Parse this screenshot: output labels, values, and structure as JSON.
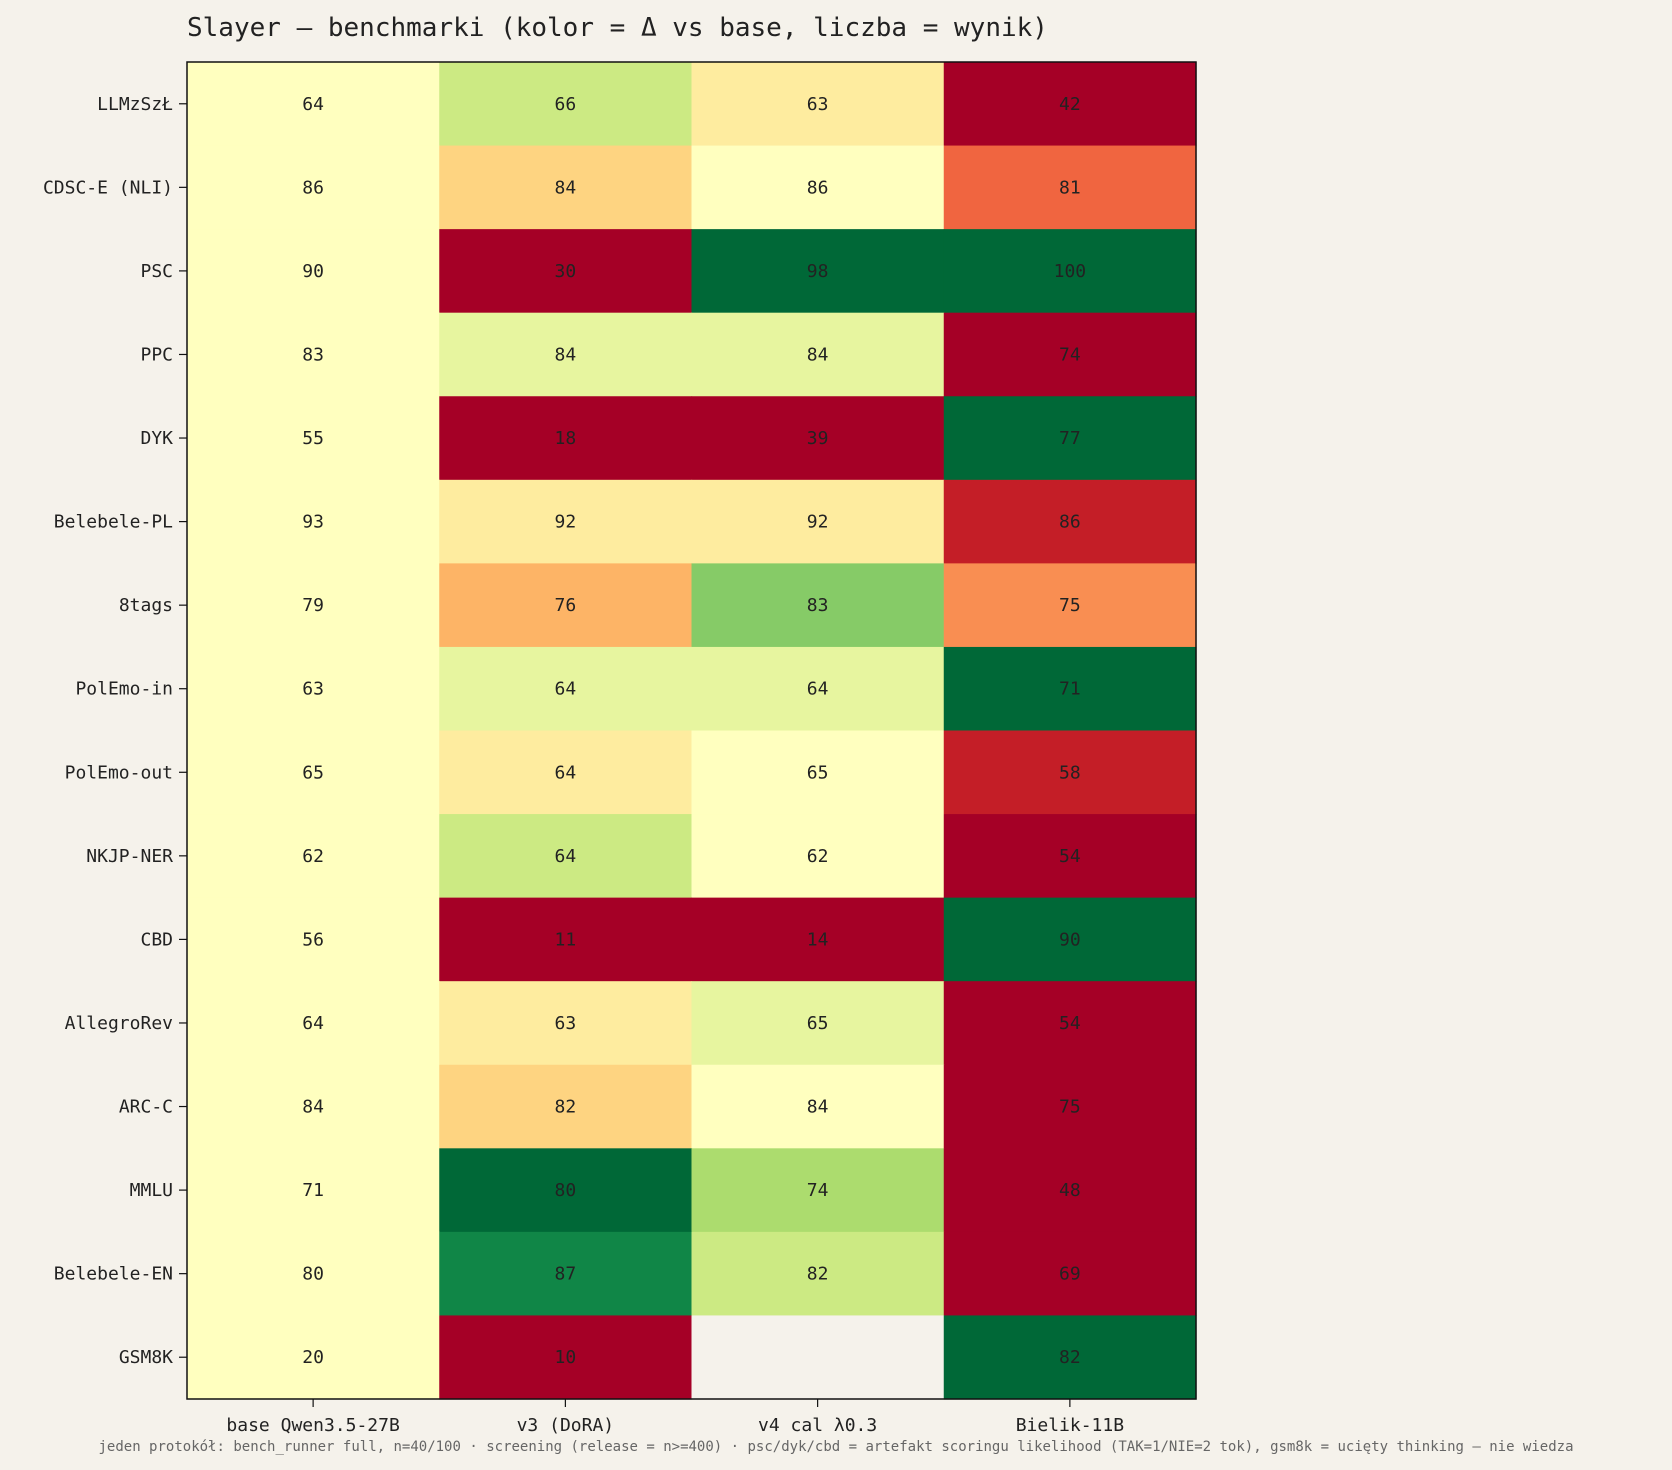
{
  "chart_data": {
    "type": "heatmap",
    "title": "Slayer — benchmarki (kolor = Δ vs base, liczba = wynik)",
    "footnote": "jeden protokół: bench_runner full, n=40/100 · screening (release = n>=400) · psc/dyk/cbd = artefakt scoringu likelihood (TAK=1/NIE=2 tok), gsm8k = ucięty thinking — nie wiedza",
    "columns": [
      "base Qwen3.5-27B",
      "v3 (DoRA)",
      "v4 cal λ0.3",
      "Bielik-11B"
    ],
    "rows": [
      "LLMzSzŁ",
      "CDSC-E (NLI)",
      "PSC",
      "PPC",
      "DYK",
      "Belebele-PL",
      "8tags",
      "PolEmo-in",
      "PolEmo-out",
      "NKJP-NER",
      "CBD",
      "AllegroRev",
      "ARC-C",
      "MMLU",
      "Belebele-EN",
      "GSM8K"
    ],
    "values": [
      [
        64,
        66,
        63,
        42
      ],
      [
        86,
        84,
        86,
        81
      ],
      [
        90,
        30,
        98,
        100
      ],
      [
        83,
        84,
        84,
        74
      ],
      [
        55,
        18,
        39,
        77
      ],
      [
        93,
        92,
        92,
        86
      ],
      [
        79,
        76,
        83,
        75
      ],
      [
        63,
        64,
        64,
        71
      ],
      [
        65,
        64,
        65,
        58
      ],
      [
        62,
        64,
        62,
        54
      ],
      [
        56,
        11,
        14,
        90
      ],
      [
        64,
        63,
        65,
        54
      ],
      [
        84,
        82,
        84,
        75
      ],
      [
        71,
        80,
        74,
        48
      ],
      [
        80,
        87,
        82,
        69
      ],
      [
        20,
        10,
        null,
        82
      ]
    ],
    "color_metric": "Δ vs base",
    "colormap": "RdYlGn",
    "missing_color": "#f5f2eb"
  }
}
